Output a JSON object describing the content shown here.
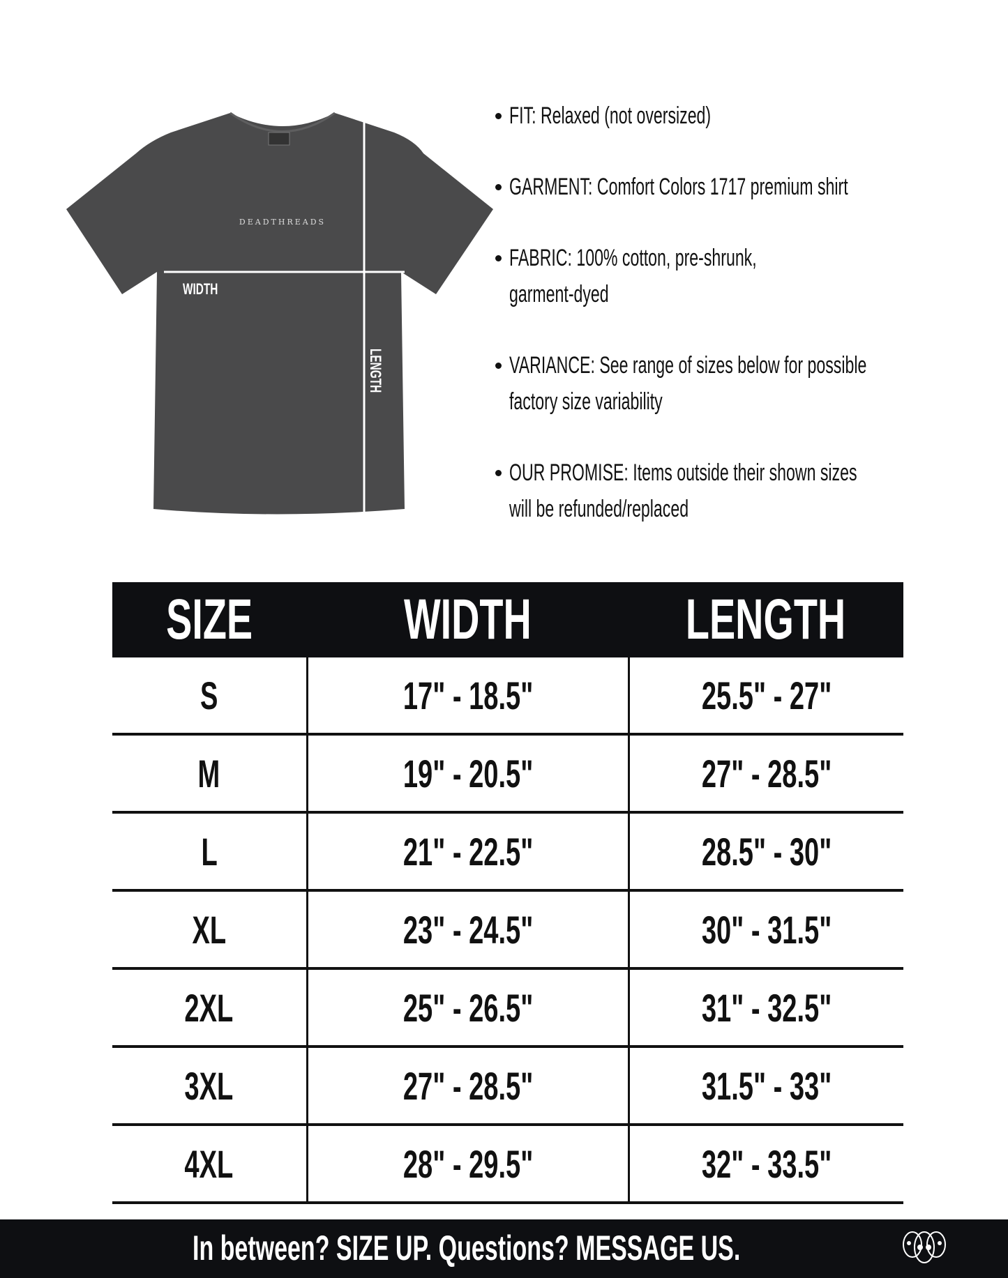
{
  "shirt": {
    "brand_print": "DEADTHREADS",
    "width_label": "WIDTH",
    "length_label": "LENGTH",
    "color": "#4a4a4b"
  },
  "bullets": [
    {
      "lines": [
        "FIT: Relaxed (not oversized)"
      ]
    },
    {
      "lines": [
        "GARMENT: Comfort Colors 1717 premium shirt"
      ]
    },
    {
      "lines": [
        "FABRIC: 100% cotton, pre-shrunk,",
        "garment-dyed"
      ]
    },
    {
      "lines": [
        "VARIANCE: See range of sizes below for possible",
        "factory size variability"
      ]
    },
    {
      "lines": [
        "OUR PROMISE: Items outside their shown sizes",
        "will be refunded/replaced"
      ]
    }
  ],
  "table": {
    "headers": [
      "SIZE",
      "WIDTH",
      "LENGTH"
    ],
    "rows": [
      [
        "S",
        "17\" - 18.5\"",
        "25.5\" - 27\""
      ],
      [
        "M",
        "19\" - 20.5\"",
        "27\" - 28.5\""
      ],
      [
        "L",
        "21\" - 22.5\"",
        "28.5\" - 30\""
      ],
      [
        "XL",
        "23\" - 24.5\"",
        "30\" - 31.5\""
      ],
      [
        "2XL",
        "25\" - 26.5\"",
        "31\" - 32.5\""
      ],
      [
        "3XL",
        "27\" - 28.5\"",
        "31.5\" - 33\""
      ],
      [
        "4XL",
        "28\" - 29.5\"",
        "32\" - 33.5\""
      ]
    ]
  },
  "footer": {
    "message": "In between? SIZE UP. Questions? MESSAGE US.",
    "logo_icon": "skulls-logo-icon"
  }
}
